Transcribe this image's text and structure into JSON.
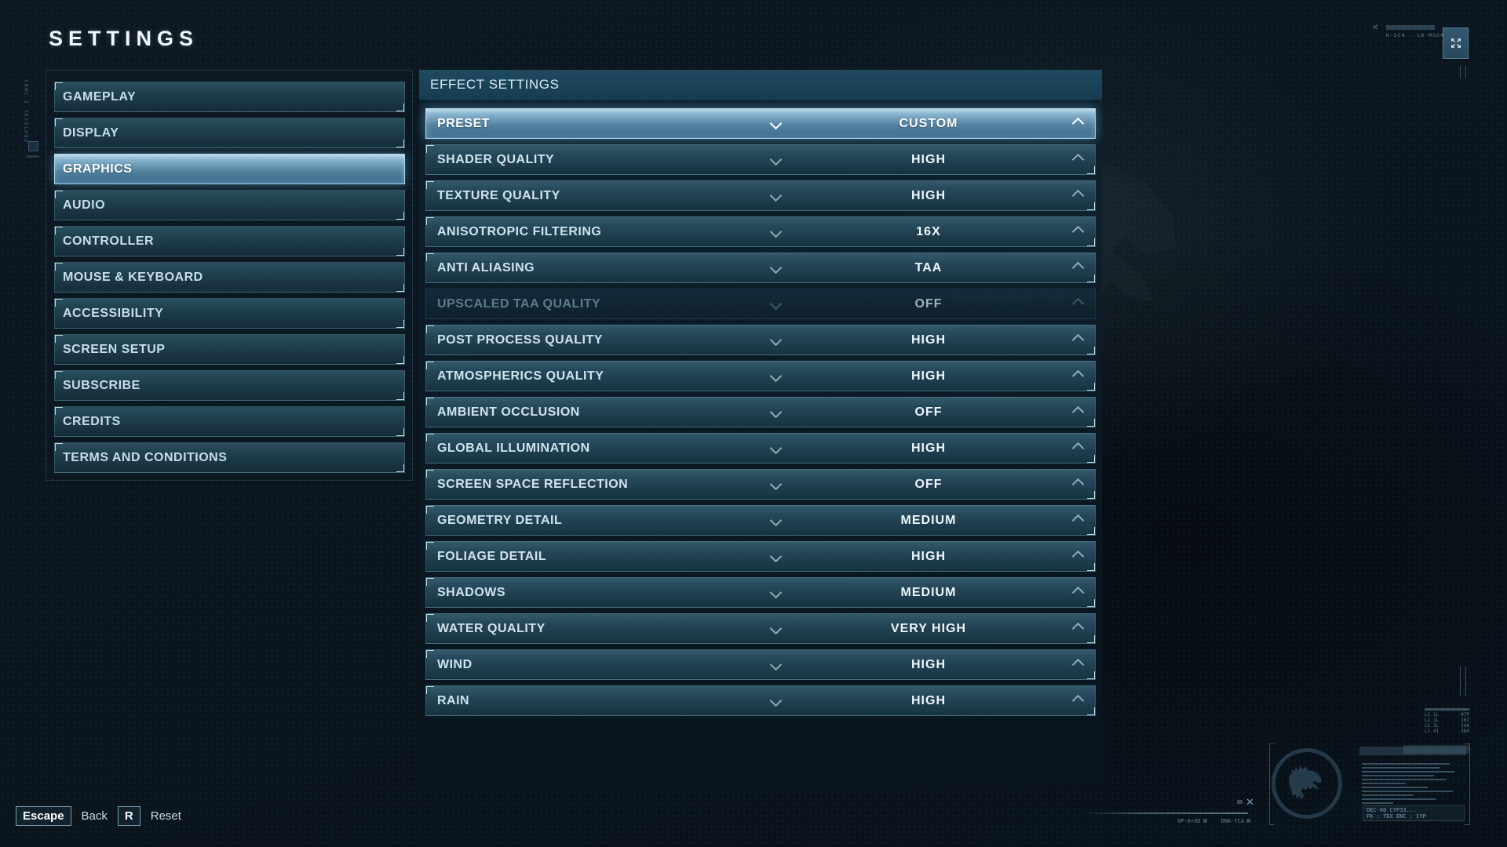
{
  "title": "SETTINGS",
  "sidebar": {
    "items": [
      {
        "label": "GAMEPLAY",
        "selected": false
      },
      {
        "label": "DISPLAY",
        "selected": false
      },
      {
        "label": "GRAPHICS",
        "selected": true
      },
      {
        "label": "AUDIO",
        "selected": false
      },
      {
        "label": "CONTROLLER",
        "selected": false
      },
      {
        "label": "MOUSE & KEYBOARD",
        "selected": false
      },
      {
        "label": "ACCESSIBILITY",
        "selected": false
      },
      {
        "label": "SCREEN SETUP",
        "selected": false
      },
      {
        "label": "SUBSCRIBE",
        "selected": false
      },
      {
        "label": "CREDITS",
        "selected": false
      },
      {
        "label": "TERMS AND CONDITIONS",
        "selected": false
      }
    ]
  },
  "panel": {
    "header": "EFFECT SETTINGS",
    "rows": [
      {
        "label": "PRESET",
        "value": "CUSTOM",
        "state": "selected"
      },
      {
        "label": "SHADER QUALITY",
        "value": "HIGH",
        "state": "normal"
      },
      {
        "label": "TEXTURE QUALITY",
        "value": "HIGH",
        "state": "normal"
      },
      {
        "label": "ANISOTROPIC FILTERING",
        "value": "16X",
        "state": "normal"
      },
      {
        "label": "ANTI ALIASING",
        "value": "TAA",
        "state": "normal"
      },
      {
        "label": "UPSCALED TAA QUALITY",
        "value": "OFF",
        "state": "disabled"
      },
      {
        "label": "POST PROCESS QUALITY",
        "value": "HIGH",
        "state": "normal"
      },
      {
        "label": "ATMOSPHERICS QUALITY",
        "value": "HIGH",
        "state": "normal"
      },
      {
        "label": "AMBIENT OCCLUSION",
        "value": "OFF",
        "state": "normal"
      },
      {
        "label": "GLOBAL ILLUMINATION",
        "value": "HIGH",
        "state": "normal"
      },
      {
        "label": "SCREEN SPACE REFLECTION",
        "value": "OFF",
        "state": "normal"
      },
      {
        "label": "GEOMETRY DETAIL",
        "value": "MEDIUM",
        "state": "normal"
      },
      {
        "label": "FOLIAGE DETAIL",
        "value": "HIGH",
        "state": "normal"
      },
      {
        "label": "SHADOWS",
        "value": "MEDIUM",
        "state": "normal"
      },
      {
        "label": "WATER QUALITY",
        "value": "VERY HIGH",
        "state": "normal"
      },
      {
        "label": "WIND",
        "value": "HIGH",
        "state": "normal"
      },
      {
        "label": "RAIN",
        "value": "HIGH",
        "state": "normal"
      }
    ]
  },
  "hints": {
    "back_key": "Escape",
    "back_label": "Back",
    "reset_key": "R",
    "reset_label": "Reset"
  },
  "hud": {
    "top_right_code": "H-SC4 - L8 MSG4",
    "protocol_tag": "PROTOCOL 1 JW01",
    "mini_table_rows": [
      [
        "L1 1L",
        "07P"
      ],
      [
        "L1 2L",
        "102"
      ],
      [
        "L1 3L",
        "14A"
      ],
      [
        "L1 41",
        "364"
      ]
    ],
    "terminal_line1": "DEC-00 CYP33...",
    "terminal_line2": "FK : TEX  ENC : CYP",
    "marker_left": "OP-6+3D",
    "marker_right": "DNA-TCA",
    "redacted_line_widths": [
      112,
      100,
      118,
      92,
      108,
      56,
      84,
      116,
      66,
      94,
      40
    ]
  },
  "colors": {
    "accent": "#a9d9f0",
    "selected_gradient_top": "#b9d7e7",
    "row_value_text": "#eef6fb",
    "background": "#0a141d"
  }
}
